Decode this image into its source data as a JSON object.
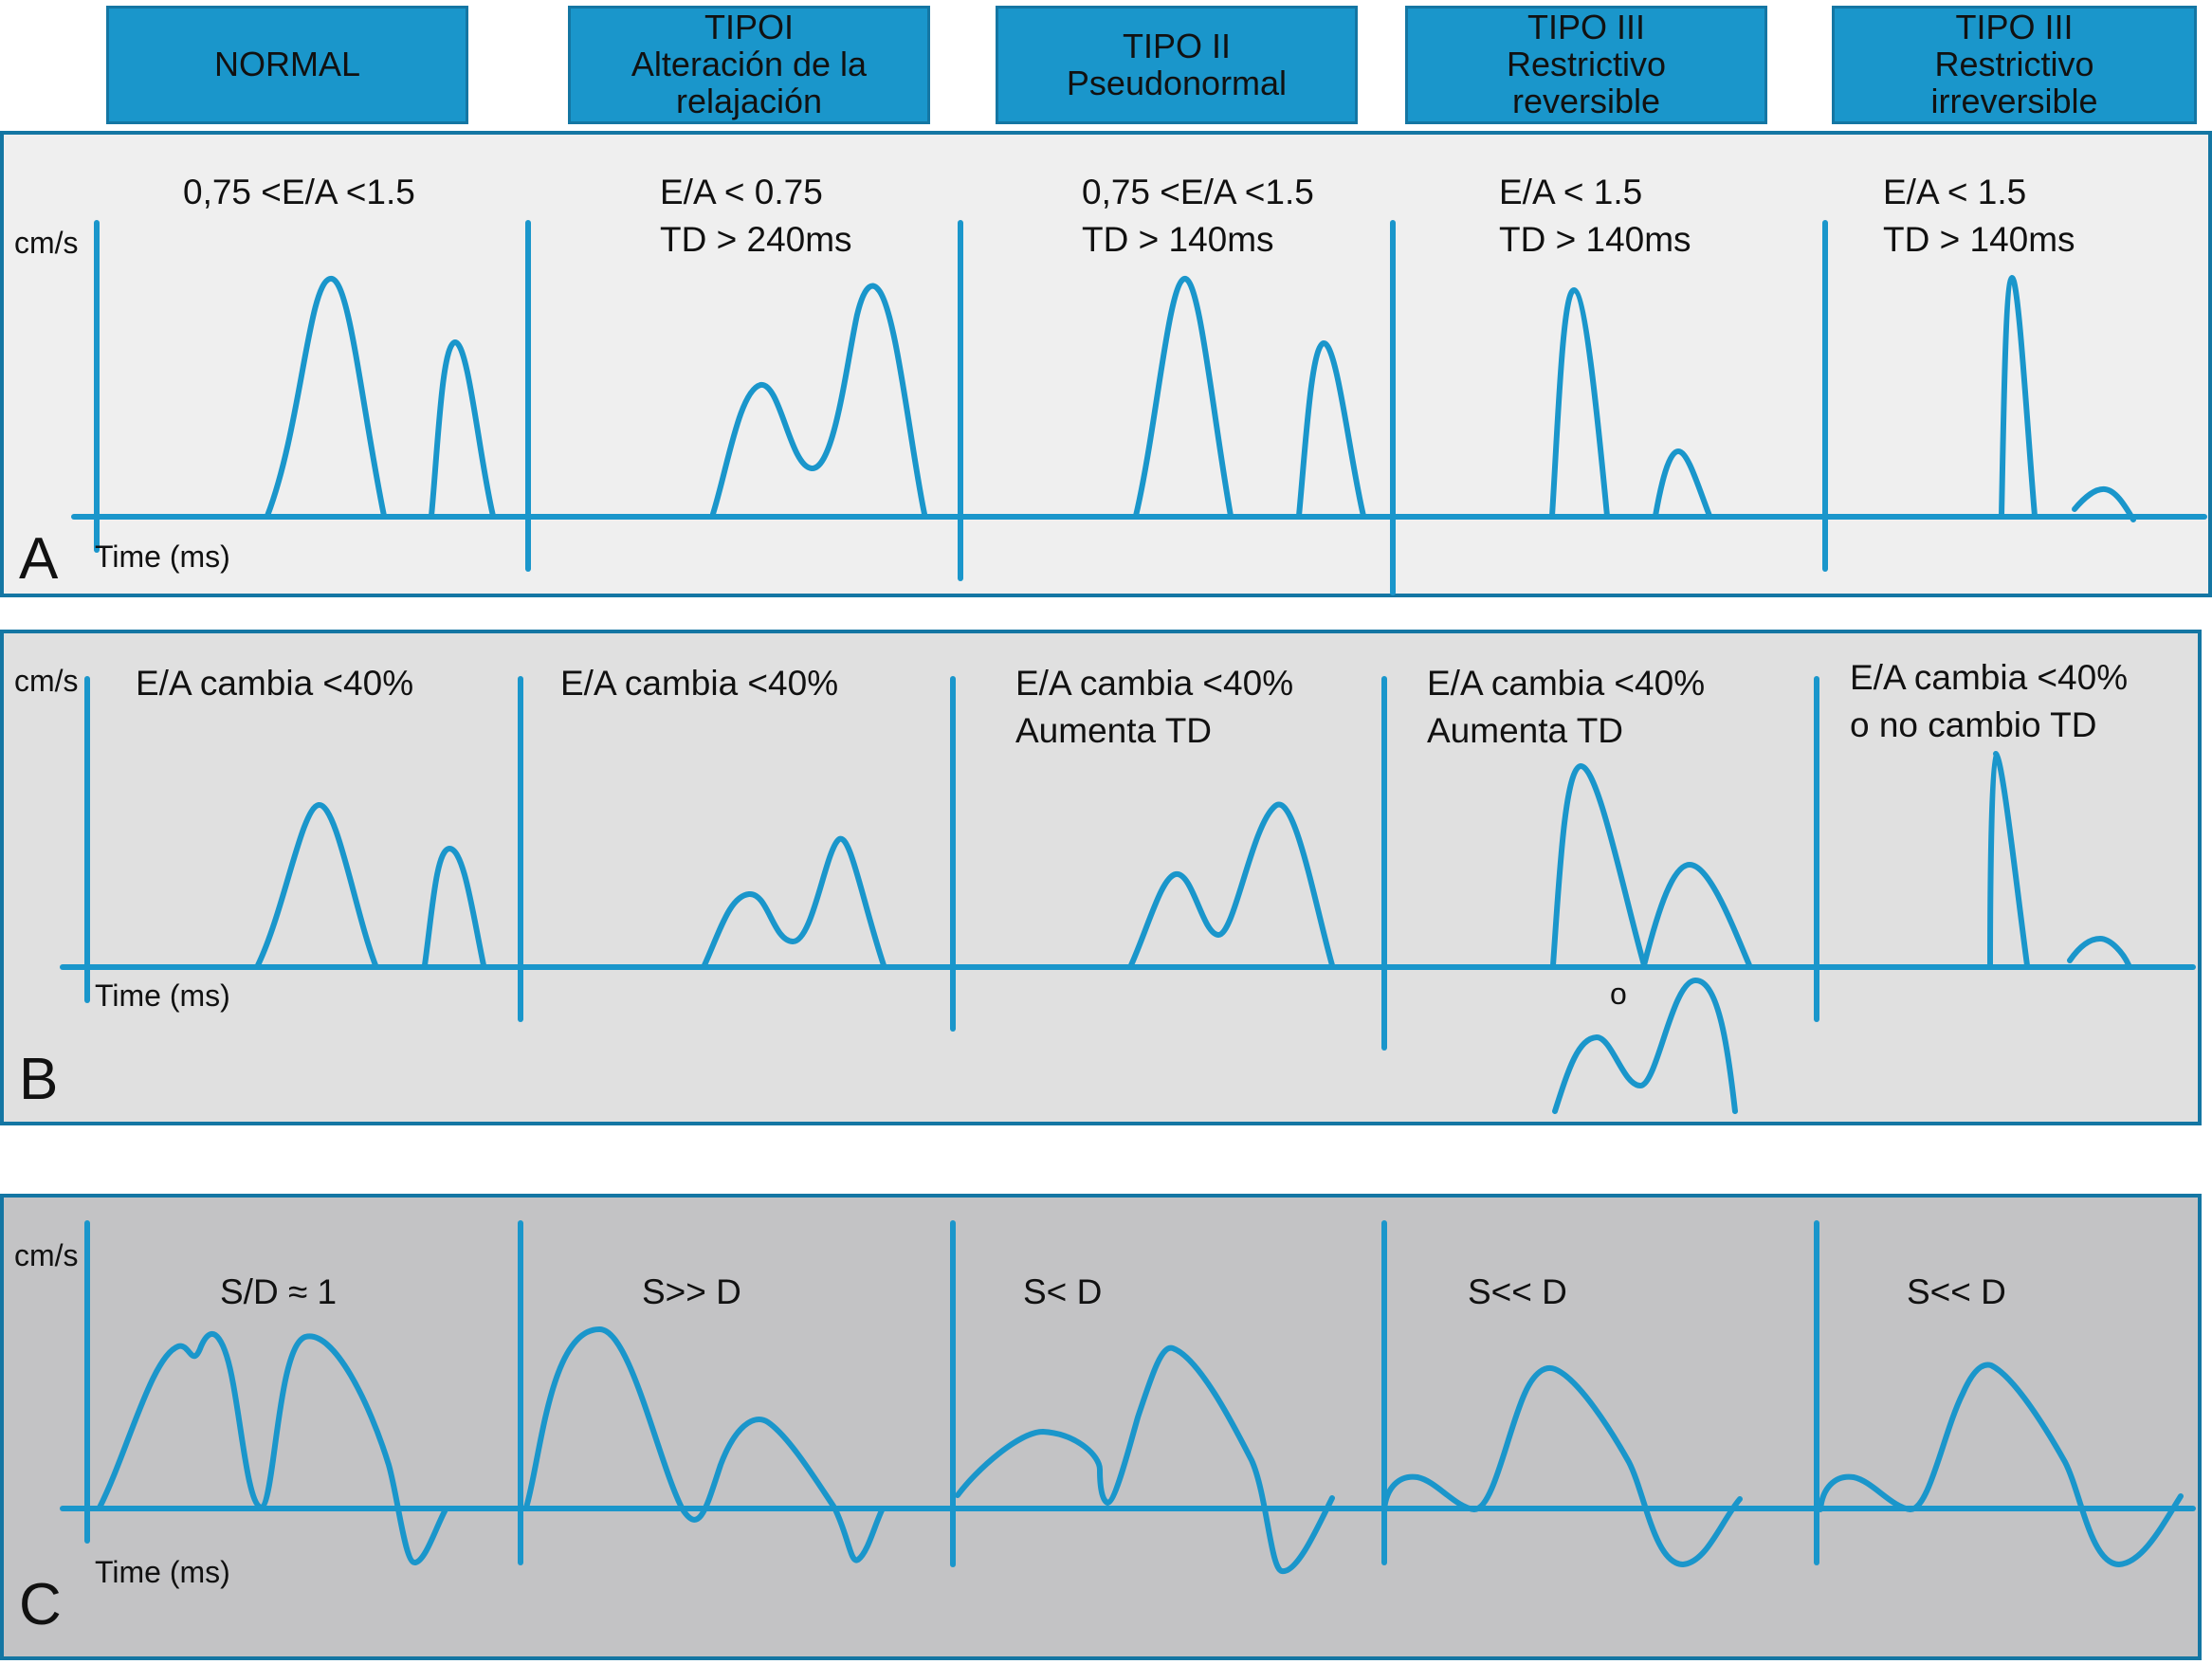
{
  "headers": [
    [
      "NORMAL"
    ],
    [
      "TIPOI",
      "Alteración de la",
      "relajación"
    ],
    [
      "TIPO II",
      "Pseudonormal"
    ],
    [
      "TIPO III",
      "Restrictivo",
      "reversible"
    ],
    [
      "TIPO III",
      "Restrictivo",
      "irreversible"
    ]
  ],
  "panels": [
    {
      "letter": "A",
      "y_unit": "cm/s",
      "x_unit": "Time (ms)",
      "criteria": [
        [
          "0,75 <E/A <1.5"
        ],
        [
          "E/A < 0.75",
          "TD > 240ms"
        ],
        [
          "0,75 <E/A <1.5",
          "TD > 140ms"
        ],
        [
          "E/A < 1.5",
          "TD > 140ms"
        ],
        [
          "E/A < 1.5",
          "TD > 140ms"
        ]
      ]
    },
    {
      "letter": "B",
      "y_unit": "cm/s",
      "x_unit": "Time (ms)",
      "criteria": [
        [
          "E/A cambia <40%"
        ],
        [
          "E/A cambia <40%"
        ],
        [
          "E/A cambia <40%",
          "Aumenta TD"
        ],
        [
          "E/A cambia <40%",
          "Aumenta TD"
        ],
        [
          "E/A cambia <40%",
          "o no cambio TD"
        ]
      ],
      "alternative": "o"
    },
    {
      "letter": "C",
      "y_unit": "cm/s",
      "x_unit": "Time (ms)",
      "criteria": [
        [
          "S/D ≈ 1"
        ],
        [
          "S>> D"
        ],
        [
          "S< D"
        ],
        [
          "S<< D"
        ],
        [
          "S<< D"
        ]
      ]
    }
  ],
  "colors": {
    "header_fill": "#1a96cb",
    "header_border": "#1476a3",
    "waveform": "#1a96cb",
    "panel_a_bg": "#efefef",
    "panel_b_bg": "#e0e0e0",
    "panel_c_bg": "#c3c3c5"
  }
}
